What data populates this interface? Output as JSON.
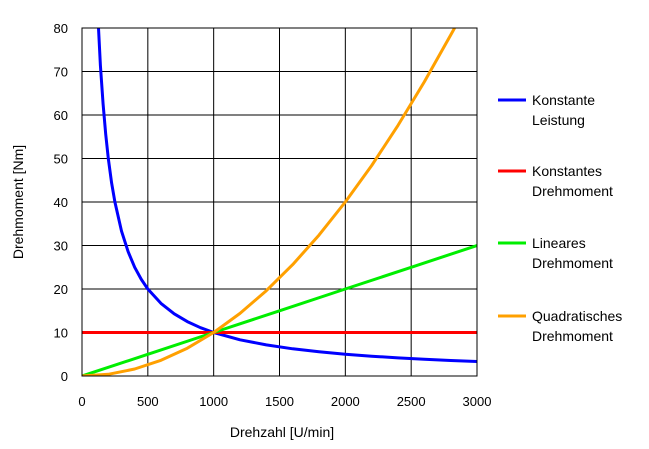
{
  "chart_data": {
    "type": "line",
    "title": "",
    "xlabel": "Drehzahl [U/min]",
    "ylabel": "Drehmoment [Nm]",
    "xlim": [
      0,
      3000
    ],
    "ylim": [
      0,
      80
    ],
    "xticks": [
      0,
      500,
      1000,
      1500,
      2000,
      2500,
      3000
    ],
    "yticks": [
      0,
      10,
      20,
      30,
      40,
      50,
      60,
      70,
      80
    ],
    "grid": true,
    "legend_position": "right",
    "series": [
      {
        "name": "Konstante Leistung",
        "legend_lines": [
          "Konstante",
          "Leistung"
        ],
        "color": "#0000ff",
        "x": [
          125,
          140,
          160,
          180,
          200,
          225,
          250,
          300,
          350,
          400,
          450,
          500,
          600,
          700,
          800,
          900,
          1000,
          1200,
          1400,
          1600,
          1800,
          2000,
          2200,
          2400,
          2600,
          2800,
          3000
        ],
        "y": [
          80,
          71.4,
          62.5,
          55.6,
          50,
          44.4,
          40,
          33.3,
          28.6,
          25,
          22.2,
          20,
          16.7,
          14.3,
          12.5,
          11.1,
          10,
          8.33,
          7.14,
          6.25,
          5.56,
          5,
          4.55,
          4.17,
          3.85,
          3.57,
          3.33
        ]
      },
      {
        "name": "Konstantes Drehmoment",
        "legend_lines": [
          "Konstantes",
          "Drehmoment"
        ],
        "color": "#ff0000",
        "x": [
          0,
          3000
        ],
        "y": [
          10,
          10
        ]
      },
      {
        "name": "Lineares Drehmoment",
        "legend_lines": [
          "Lineares",
          "Drehmoment"
        ],
        "color": "#00ee00",
        "x": [
          0,
          500,
          1000,
          1500,
          2000,
          2500,
          3000
        ],
        "y": [
          0,
          5,
          10,
          15,
          20,
          25,
          30
        ]
      },
      {
        "name": "Quadratisches Drehmoment",
        "legend_lines": [
          "Quadratisches",
          "Drehmoment"
        ],
        "color": "#ffa000",
        "x": [
          0,
          200,
          400,
          600,
          800,
          1000,
          1200,
          1400,
          1600,
          1800,
          2000,
          2200,
          2400,
          2600,
          2800,
          2830
        ],
        "y": [
          0,
          0.4,
          1.6,
          3.6,
          6.4,
          10,
          14.4,
          19.6,
          25.6,
          32.4,
          40,
          48.4,
          57.6,
          67.6,
          78.4,
          80
        ]
      }
    ]
  }
}
